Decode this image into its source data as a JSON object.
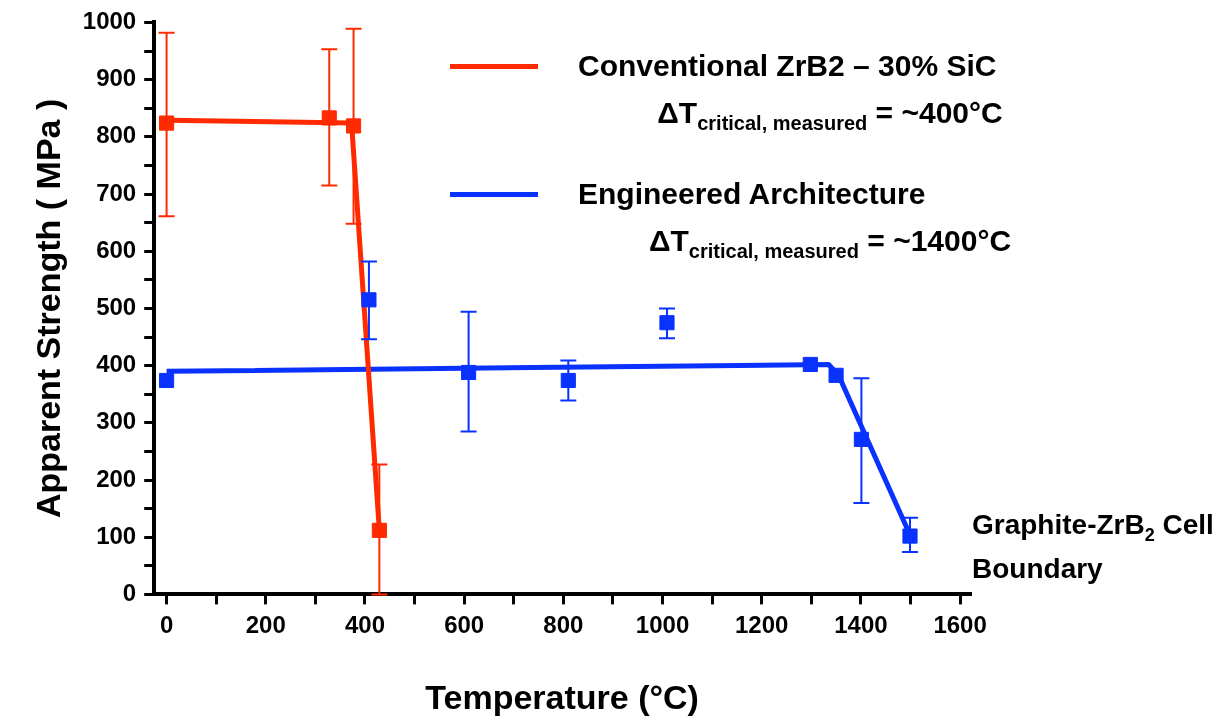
{
  "chart_data": {
    "type": "scatter",
    "xlabel": "Temperature (°C)",
    "ylabel": "Apparent Strength ( MPa )",
    "xlim": [
      -25,
      1620
    ],
    "ylim": [
      0,
      1000
    ],
    "xticks": [
      0,
      {
        "value": 100,
        "label": null
      },
      200,
      {
        "value": 300,
        "label": null
      },
      400,
      {
        "value": 500,
        "label": null
      },
      600,
      {
        "value": 700,
        "label": null
      },
      800,
      {
        "value": 900,
        "label": null
      },
      1000,
      {
        "value": 1100,
        "label": null
      },
      1200,
      {
        "value": 1300,
        "label": null
      },
      1400,
      {
        "value": 1500,
        "label": null
      },
      1600
    ],
    "yticks": [
      0,
      {
        "value": 50,
        "label": null
      },
      100,
      {
        "value": 150,
        "label": null
      },
      200,
      {
        "value": 250,
        "label": null
      },
      300,
      {
        "value": 350,
        "label": null
      },
      400,
      {
        "value": 450,
        "label": null
      },
      500,
      {
        "value": 550,
        "label": null
      },
      600,
      {
        "value": 650,
        "label": null
      },
      700,
      {
        "value": 750,
        "label": null
      },
      800,
      {
        "value": 850,
        "label": null
      },
      900,
      {
        "value": 950,
        "label": null
      },
      1000
    ],
    "grid": false,
    "legend": "top right",
    "series": [
      {
        "name": "Conventional ZrB2 – 30% SiC",
        "type": "line",
        "color": "#ff2a00",
        "marker": "none",
        "x": [
          0,
          373,
          429
        ],
        "values": [
          829,
          824,
          112
        ]
      },
      {
        "name": "Engineered Architecture",
        "type": "line",
        "color": "#0a32ff",
        "marker": "none",
        "x": [
          0,
          1335,
          1355,
          1500
        ],
        "values": [
          390,
          402,
          383,
          102
        ]
      },
      {
        "color": "#ff2a00",
        "marker": "square",
        "x": [
          0,
          328,
          377,
          429
        ],
        "values": [
          824,
          833,
          819,
          112
        ],
        "errors": [
          [
            661,
            982
          ],
          [
            715,
            953
          ],
          [
            648,
            989
          ],
          [
            0,
            227
          ]
        ]
      },
      {
        "color": "#0a32ff",
        "marker": "square",
        "x": [
          0,
          408,
          609,
          810,
          1009,
          1298,
          1350,
          1401,
          1499
        ],
        "values": [
          374,
          515,
          388,
          374,
          475,
          402,
          383,
          271,
          102
        ],
        "errors": [
          null,
          [
            446,
            582
          ],
          [
            285,
            494
          ],
          [
            339,
            409
          ],
          [
            448,
            500
          ],
          null,
          null,
          [
            160,
            378
          ],
          [
            74,
            134
          ]
        ]
      }
    ],
    "annotations": [
      "ΔT$_{critical, measured}$ = ~400°C",
      "ΔT$_{critical, measured}$ = ~1400°C",
      "Graphite-ZrB$_{2}$ Cell Boundary"
    ]
  }
}
